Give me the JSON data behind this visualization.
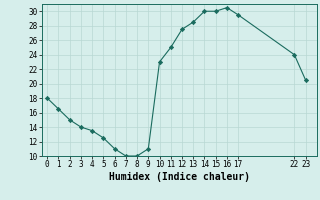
{
  "x": [
    0,
    1,
    2,
    3,
    4,
    5,
    6,
    7,
    8,
    9,
    10,
    11,
    12,
    13,
    14,
    15,
    16,
    17,
    22,
    23
  ],
  "y": [
    18,
    16.5,
    15,
    14,
    13.5,
    12.5,
    11,
    10,
    10,
    11,
    23,
    25,
    27.5,
    28.5,
    30,
    30,
    30.5,
    29.5,
    24,
    20.5
  ],
  "xlabel": "Humidex (Indice chaleur)",
  "ylim": [
    10,
    31
  ],
  "xlim": [
    -0.5,
    24
  ],
  "yticks": [
    10,
    12,
    14,
    16,
    18,
    20,
    22,
    24,
    26,
    28,
    30
  ],
  "xticks": [
    0,
    1,
    2,
    3,
    4,
    5,
    6,
    7,
    8,
    9,
    10,
    11,
    12,
    13,
    14,
    15,
    16,
    17,
    22,
    23
  ],
  "xtick_labels": [
    "0",
    "1",
    "2",
    "3",
    "4",
    "5",
    "6",
    "7",
    "8",
    "9",
    "10",
    "11",
    "12",
    "13",
    "14",
    "15",
    "16",
    "17",
    "22",
    "23"
  ],
  "line_color": "#1a6b5e",
  "marker": "D",
  "marker_size": 2.2,
  "bg_color": "#d6eeeb",
  "grid_color": "#b8d8d4",
  "xlabel_fontsize": 7,
  "tick_fontsize": 5.5
}
